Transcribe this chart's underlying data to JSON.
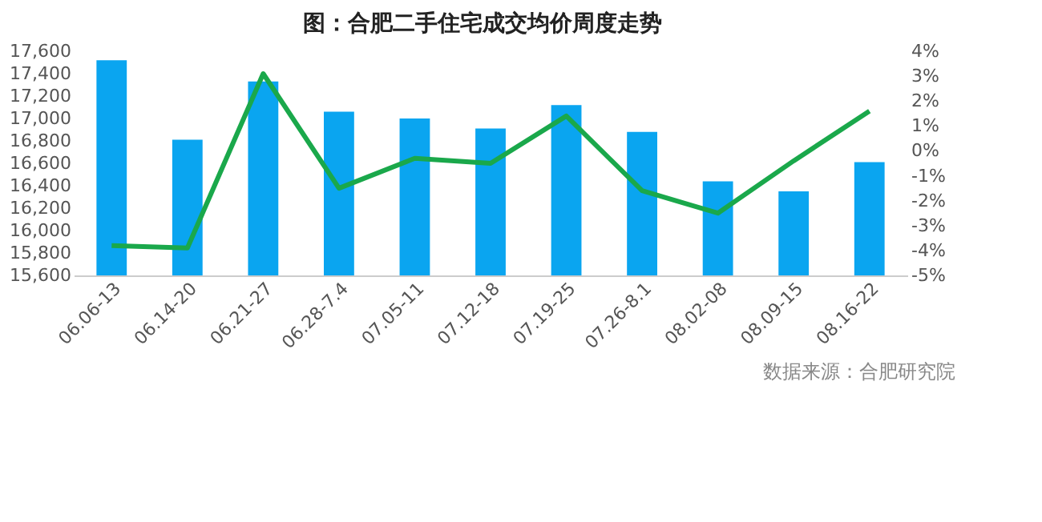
{
  "chart_data": {
    "type": "bar",
    "title": "图：合肥二手住宅成交均价周度走势",
    "categories": [
      "06.06-13",
      "06.14-20",
      "06.21-27",
      "06.28-7.4",
      "07.05-11",
      "07.12-18",
      "07.19-25",
      "07.26-8.1",
      "08.02-08",
      "08.09-15",
      "08.16-22"
    ],
    "series": [
      {
        "color": "#0aa5f0",
        "values": [
          17520,
          16810,
          17330,
          17060,
          17000,
          16910,
          17120,
          16880,
          16440,
          16350,
          16610
        ]
      },
      {
        "type": "line",
        "axis": "y2",
        "color": "#1aa84b",
        "values": [
          -3.8,
          -3.9,
          3.1,
          -1.5,
          -0.3,
          -0.5,
          1.4,
          -1.6,
          -2.5,
          -0.4,
          1.6
        ]
      }
    ],
    "ylim": [
      15600,
      17600
    ],
    "yticks": [
      {
        "value": 15600,
        "label": "15,600"
      },
      {
        "value": 15800,
        "label": "15,800"
      },
      {
        "value": 16000,
        "label": "16,000"
      },
      {
        "value": 16200,
        "label": "16,200"
      },
      {
        "value": 16400,
        "label": "16,400"
      },
      {
        "value": 16600,
        "label": "16,600"
      },
      {
        "value": 16800,
        "label": "16,800"
      },
      {
        "value": 17000,
        "label": "17,000"
      },
      {
        "value": 17200,
        "label": "17,200"
      },
      {
        "value": 17400,
        "label": "17,400"
      },
      {
        "value": 17600,
        "label": "17,600"
      }
    ],
    "y2lim": [
      -5,
      4
    ],
    "y2ticks": [
      {
        "value": -5,
        "label": "-5%"
      },
      {
        "value": -4,
        "label": "-4%"
      },
      {
        "value": -3,
        "label": "-3%"
      },
      {
        "value": -2,
        "label": "-2%"
      },
      {
        "value": -1,
        "label": "-1%"
      },
      {
        "value": 0,
        "label": "0%"
      },
      {
        "value": 1,
        "label": "1%"
      },
      {
        "value": 2,
        "label": "2%"
      },
      {
        "value": 3,
        "label": "3%"
      },
      {
        "value": 4,
        "label": "4%"
      }
    ],
    "grid": false,
    "marker": "none",
    "line_style": "solid",
    "annotations": [
      "数据来源：合肥研究院"
    ]
  }
}
